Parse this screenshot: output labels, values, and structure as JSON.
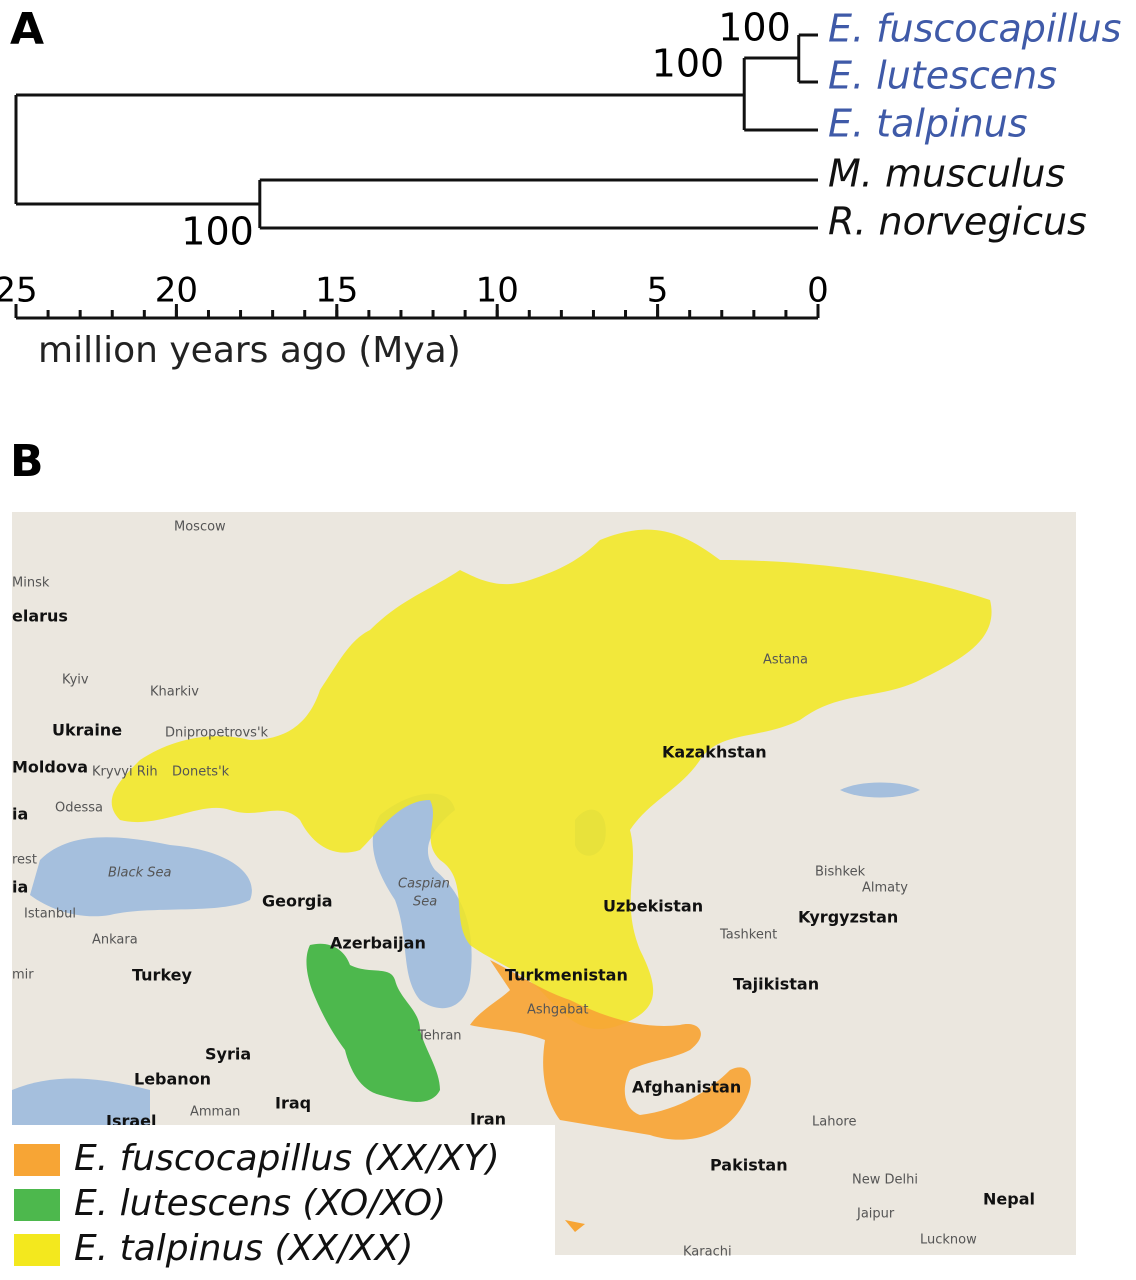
{
  "panel_a": {
    "label": "A",
    "leaves": [
      {
        "name": "E. fuscocapillus",
        "color": "#3f5aa8"
      },
      {
        "name": "E. lutescens",
        "color": "#3f5aa8"
      },
      {
        "name": "E. talpinus",
        "color": "#3f5aa8"
      },
      {
        "name": "M. musculus",
        "color": "#111111"
      },
      {
        "name": "R. norvegicus",
        "color": "#111111"
      }
    ],
    "nodes": [
      {
        "support": "100",
        "age": 0.6
      },
      {
        "support": "100",
        "age": 2.3
      },
      {
        "support": "100",
        "age": 17.4
      },
      {
        "age": 25
      }
    ],
    "axis": {
      "xlim": [
        25,
        0
      ],
      "xticks": [
        25,
        20,
        15,
        10,
        5,
        0
      ],
      "label": "million years ago (Mya)"
    }
  },
  "panel_b": {
    "label": "B",
    "map_labels": [
      "Moscow",
      "Minsk",
      "elarus",
      "Kyiv",
      "Kharkiv",
      "Ukraine",
      "Dnipropetrovs'k",
      "Moldova",
      "Kryvyi Rih",
      "Donets'k",
      "Odessa",
      "ia",
      "rest",
      "Black Sea",
      "ia",
      "Istanbul",
      "Georgia",
      "Caspian",
      "Sea",
      "Ankara",
      "Azerbaijan",
      "Turkey",
      "mir",
      "Syria",
      "Lebanon",
      "Amman",
      "Israel",
      "Iraq",
      "Tehran",
      "Iran",
      "Turkmenistan",
      "Ashgabat",
      "Uzbekistan",
      "Tashkent",
      "Kyrgyzstan",
      "Bishkek",
      "Almaty",
      "Tajikistan",
      "Afghanistan",
      "Kazakhstan",
      "Astana",
      "Lahore",
      "Pakistan",
      "New Delhi",
      "Nepal",
      "Jaipur",
      "Lucknow",
      "Karachi"
    ],
    "legend": [
      {
        "name": "E. fuscocapillus (XX/XY)",
        "color": "#f7a535"
      },
      {
        "name": "E. lutescens (XO/XO)",
        "color": "#4db84d"
      },
      {
        "name": "E. talpinus (XX/XX)",
        "color": "#f3e81e"
      }
    ]
  }
}
